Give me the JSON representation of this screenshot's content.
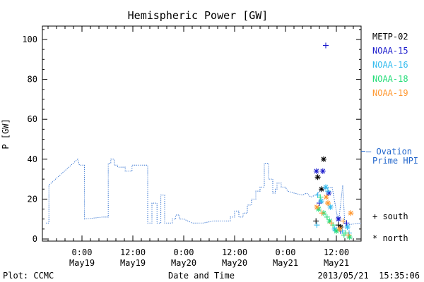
{
  "chart_data": {
    "type": "scatter",
    "title": "Hemispheric Power [GW]",
    "xlabel": "Date and Time",
    "ylabel": "P [GW]",
    "ylim": [
      0,
      107
    ],
    "xlim_hours": [
      -8,
      16.2
    ],
    "yticks": [
      0,
      20,
      40,
      60,
      80,
      100
    ],
    "xticks": [
      {
        "t": 0,
        "top": "0:00",
        "bottom": "May19"
      },
      {
        "t": 12,
        "top": "12:00",
        "bottom": "May19"
      },
      {
        "t": 24,
        "top": "0:00",
        "bottom": "May20"
      },
      {
        "t": 36,
        "top": "12:00",
        "bottom": "May20"
      },
      {
        "t": 48,
        "top": "0:00",
        "bottom": "May21"
      },
      {
        "t": 60,
        "top": "12:00",
        "bottom": "May21"
      }
    ],
    "series": [
      {
        "name": "METP-02",
        "color": "#000000"
      },
      {
        "name": "NOAA-15",
        "color": "#1a1acc"
      },
      {
        "name": "NOAA-16",
        "color": "#33bbee"
      },
      {
        "name": "NOAA-18",
        "color": "#22dd77"
      },
      {
        "name": "NOAA-19",
        "color": "#ff9933"
      }
    ],
    "ovation": {
      "name": "Ovation Prime HPI",
      "label_line1": "– Ovation",
      "label_line2": "Prime HPI",
      "color": "#2266cc",
      "x": [
        -8.5,
        -7.8,
        -7.8,
        -1.0,
        -0.6,
        0.6,
        0.6,
        4.8,
        4.8,
        6.2,
        6.2,
        6.8,
        6.8,
        7.6,
        7.6,
        8.4,
        8.4,
        10.2,
        10.2,
        11.8,
        11.8,
        15.5,
        15.5,
        16.5,
        16.5,
        17.7,
        17.7,
        18.6,
        18.6,
        19.5,
        19.5,
        20.2,
        20.2,
        21.3,
        21.3,
        22.1,
        22.1,
        23.0,
        23.0,
        24.0,
        26.0,
        28.5,
        31.0,
        34.0,
        35.0,
        35.0,
        36.0,
        36.0,
        37.0,
        37.0,
        38.0,
        38.0,
        39.0,
        39.0,
        40.0,
        40.0,
        41.0,
        41.0,
        42.0,
        42.0,
        43.0,
        43.0,
        44.0,
        44.0,
        45.0,
        45.0,
        45.6,
        45.6,
        46.0,
        46.0,
        47.0,
        47.0,
        48.0,
        48.5,
        50.0,
        52.0,
        52.0,
        53.0,
        53.0,
        54.0,
        54.0,
        55.0,
        55.0,
        57.0,
        57.0,
        59.0,
        59.0,
        60.5,
        60.5,
        61.5,
        61.5,
        62.0,
        62.0,
        66.0
      ],
      "y": [
        8,
        8,
        27,
        40,
        37,
        37,
        10,
        11,
        11,
        11,
        38,
        38,
        40,
        40,
        37,
        37,
        36,
        36,
        34,
        34,
        37,
        37,
        8,
        8,
        18,
        18,
        8,
        8,
        22,
        22,
        8,
        8,
        8,
        8,
        10,
        10,
        12,
        12,
        10,
        10,
        8,
        8,
        9,
        9,
        9,
        11,
        11,
        14,
        14,
        11,
        11,
        13,
        13,
        17,
        17,
        20,
        20,
        24,
        24,
        26,
        26,
        38,
        38,
        30,
        30,
        23,
        23,
        25,
        25,
        28,
        28,
        26,
        26,
        24,
        23,
        22,
        22,
        23,
        23,
        21,
        21,
        22,
        22,
        25,
        25,
        26,
        26,
        8,
        8,
        27,
        27,
        7,
        7,
        8
      ]
    },
    "points": [
      {
        "s": 0,
        "m": "+",
        "t": 55.2,
        "y": 9
      },
      {
        "s": 0,
        "m": "*",
        "t": 55.6,
        "y": 31
      },
      {
        "s": 0,
        "m": "*",
        "t": 56.5,
        "y": 25
      },
      {
        "s": 0,
        "m": "*",
        "t": 57.0,
        "y": 40
      },
      {
        "s": 0,
        "m": "+",
        "t": 60.5,
        "y": 7
      },
      {
        "s": 0,
        "m": "*",
        "t": 61.0,
        "y": 6
      },
      {
        "s": 1,
        "m": "*",
        "t": 55.3,
        "y": 34
      },
      {
        "s": 1,
        "m": "*",
        "t": 56.8,
        "y": 34
      },
      {
        "s": 1,
        "m": "+",
        "t": 57.5,
        "y": 97
      },
      {
        "s": 1,
        "m": "*",
        "t": 58.2,
        "y": 23
      },
      {
        "s": 1,
        "m": "+",
        "t": 56.0,
        "y": 18
      },
      {
        "s": 1,
        "m": "*",
        "t": 60.5,
        "y": 10
      },
      {
        "s": 1,
        "m": "+",
        "t": 62.4,
        "y": 8
      },
      {
        "s": 1,
        "m": "+",
        "t": 61.0,
        "y": 4
      },
      {
        "s": 2,
        "m": "+",
        "t": 55.6,
        "y": 22
      },
      {
        "s": 2,
        "m": "*",
        "t": 56.4,
        "y": 19
      },
      {
        "s": 2,
        "m": "*",
        "t": 57.5,
        "y": 26
      },
      {
        "s": 2,
        "m": "+",
        "t": 58.0,
        "y": 24
      },
      {
        "s": 2,
        "m": "*",
        "t": 58.6,
        "y": 16
      },
      {
        "s": 2,
        "m": "+",
        "t": 55.4,
        "y": 7
      },
      {
        "s": 2,
        "m": "*",
        "t": 59.6,
        "y": 5
      },
      {
        "s": 2,
        "m": "+",
        "t": 61.4,
        "y": 4
      },
      {
        "s": 2,
        "m": "*",
        "t": 62.6,
        "y": 6
      },
      {
        "s": 2,
        "m": "+",
        "t": 63.0,
        "y": 3
      },
      {
        "s": 3,
        "m": "*",
        "t": 55.8,
        "y": 15
      },
      {
        "s": 3,
        "m": "+",
        "t": 56.2,
        "y": 21
      },
      {
        "s": 3,
        "m": "*",
        "t": 57.0,
        "y": 13
      },
      {
        "s": 3,
        "m": "+",
        "t": 57.8,
        "y": 11
      },
      {
        "s": 3,
        "m": "*",
        "t": 58.4,
        "y": 9
      },
      {
        "s": 3,
        "m": "+",
        "t": 59.2,
        "y": 7
      },
      {
        "s": 3,
        "m": "*",
        "t": 60.0,
        "y": 4
      },
      {
        "s": 3,
        "m": "+",
        "t": 61.8,
        "y": 2
      },
      {
        "s": 3,
        "m": "*",
        "t": 63.1,
        "y": 1
      },
      {
        "s": 3,
        "m": "+",
        "t": 62.2,
        "y": 3
      },
      {
        "s": 4,
        "m": "*",
        "t": 55.4,
        "y": 16
      },
      {
        "s": 4,
        "m": "+",
        "t": 56.6,
        "y": 13
      },
      {
        "s": 4,
        "m": "*",
        "t": 57.6,
        "y": 21
      },
      {
        "s": 4,
        "m": "*",
        "t": 58.0,
        "y": 18
      },
      {
        "s": 4,
        "m": "+",
        "t": 58.8,
        "y": 8
      },
      {
        "s": 4,
        "m": "*",
        "t": 60.8,
        "y": 5
      },
      {
        "s": 4,
        "m": "+",
        "t": 61.6,
        "y": 9
      },
      {
        "s": 4,
        "m": "*",
        "t": 63.4,
        "y": 13
      },
      {
        "s": 4,
        "m": "+",
        "t": 62.8,
        "y": 2
      }
    ]
  },
  "legend_marks": {
    "south": "+ south",
    "north": "* north"
  },
  "footer": {
    "left": "Plot: CCMC",
    "center": "Date and Time",
    "right": "2013/05/21  15:35:06"
  }
}
